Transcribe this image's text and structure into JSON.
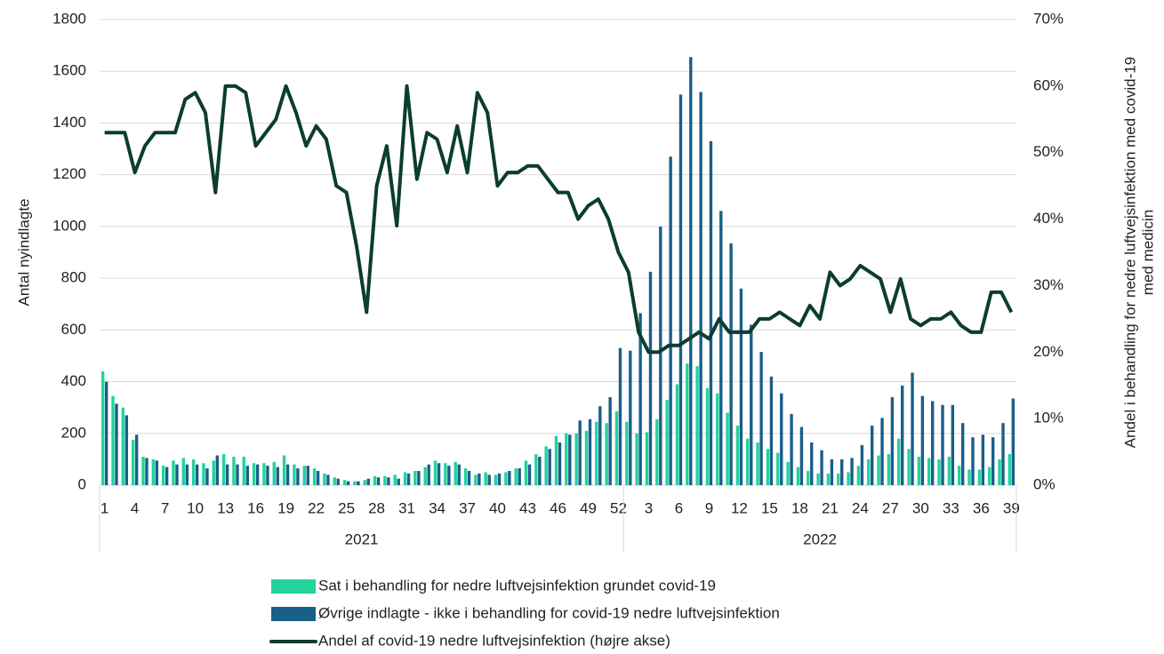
{
  "chart_data": {
    "type": "bar-line",
    "y_label": "Antal nyindlagte",
    "y2_label": [
      "Andel i behandling for nedre luftvejsinfektion med covid-19",
      "med medicin"
    ],
    "x_groups": [
      "2021",
      "2022"
    ],
    "categories": [
      "1",
      null,
      null,
      "4",
      null,
      null,
      "7",
      null,
      null,
      "10",
      null,
      null,
      "13",
      null,
      null,
      "16",
      null,
      null,
      "19",
      null,
      null,
      "22",
      null,
      null,
      "25",
      null,
      null,
      "28",
      null,
      null,
      "31",
      null,
      null,
      "34",
      null,
      null,
      "37",
      null,
      null,
      "40",
      null,
      null,
      "43",
      null,
      null,
      "46",
      null,
      null,
      "49",
      null,
      null,
      "52",
      null,
      null,
      "3",
      null,
      null,
      "6",
      null,
      null,
      "9",
      null,
      null,
      "12",
      null,
      null,
      "15",
      null,
      null,
      "18",
      null,
      null,
      "21",
      null,
      null,
      "24",
      null,
      null,
      "27",
      null,
      null,
      "30",
      null,
      null,
      "33",
      null,
      null,
      "36",
      null,
      null,
      "39"
    ],
    "ylim": [
      0,
      1800
    ],
    "yticks": [
      0,
      200,
      400,
      600,
      800,
      1000,
      1200,
      1400,
      1600,
      1800
    ],
    "y2lim": [
      0,
      70
    ],
    "y2ticks": [
      {
        "value": 0,
        "label": "0%"
      },
      {
        "value": 10,
        "label": "10%"
      },
      {
        "value": 20,
        "label": "20%"
      },
      {
        "value": 30,
        "label": "30%"
      },
      {
        "value": 40,
        "label": "40%"
      },
      {
        "value": 50,
        "label": "50%"
      },
      {
        "value": 60,
        "label": "60%"
      },
      {
        "value": 70,
        "label": "70%"
      }
    ],
    "grid": true,
    "series": [
      {
        "name": "Sat i behandling for nedre luftvejsinfektion grundet covid-19",
        "type": "bar",
        "color": "#22d39c",
        "values": [
          440,
          345,
          300,
          175,
          110,
          100,
          75,
          95,
          105,
          100,
          85,
          95,
          120,
          110,
          110,
          85,
          85,
          90,
          115,
          80,
          75,
          65,
          45,
          30,
          20,
          15,
          20,
          35,
          35,
          40,
          50,
          55,
          70,
          95,
          85,
          90,
          65,
          40,
          50,
          40,
          50,
          65,
          95,
          120,
          150,
          190,
          200,
          200,
          210,
          245,
          240,
          285,
          245,
          200,
          205,
          255,
          330,
          390,
          470,
          460,
          375,
          355,
          280,
          230,
          180,
          165,
          140,
          125,
          90,
          70,
          55,
          45,
          45,
          45,
          50,
          75,
          100,
          115,
          120,
          180,
          140,
          110,
          105,
          100,
          110,
          75,
          60,
          60,
          70,
          100,
          120
        ]
      },
      {
        "name": "Øvrige indlagte - ikke i behandling for covid-19 nedre luftvejsinfektion",
        "type": "bar",
        "color": "#1a5e8a",
        "values": [
          400,
          315,
          270,
          195,
          105,
          95,
          70,
          80,
          80,
          80,
          65,
          115,
          80,
          80,
          75,
          80,
          75,
          70,
          80,
          65,
          75,
          55,
          40,
          25,
          15,
          15,
          25,
          30,
          30,
          25,
          45,
          55,
          80,
          85,
          75,
          80,
          55,
          45,
          40,
          45,
          55,
          65,
          80,
          110,
          140,
          165,
          195,
          250,
          255,
          305,
          340,
          530,
          520,
          665,
          825,
          1000,
          1270,
          1510,
          1655,
          1520,
          1330,
          1060,
          935,
          760,
          620,
          515,
          420,
          355,
          275,
          225,
          165,
          135,
          100,
          100,
          105,
          155,
          230,
          260,
          340,
          385,
          435,
          345,
          325,
          310,
          310,
          240,
          185,
          195,
          185,
          240,
          335
        ]
      },
      {
        "name": "Andel af covid-19 nedre luftvejsinfektion (højre akse)",
        "type": "line",
        "axis": "y2",
        "color": "#0b3d30",
        "values": [
          53,
          53,
          53,
          47,
          51,
          53,
          53,
          53,
          58,
          59,
          56,
          44,
          60,
          60,
          59,
          51,
          53,
          55,
          60,
          56,
          51,
          54,
          52,
          45,
          44,
          36,
          26,
          45,
          51,
          39,
          60,
          46,
          53,
          52,
          47,
          54,
          47,
          59,
          56,
          45,
          47,
          47,
          48,
          48,
          46,
          44,
          44,
          40,
          42,
          43,
          40,
          35,
          32,
          23,
          20,
          20,
          21,
          21,
          22,
          23,
          22,
          25,
          23,
          23,
          23,
          25,
          25,
          26,
          25,
          24,
          27,
          25,
          32,
          30,
          31,
          33,
          32,
          31,
          26,
          31,
          25,
          24,
          25,
          25,
          26,
          24,
          23,
          23,
          29,
          29,
          26
        ]
      }
    ]
  }
}
